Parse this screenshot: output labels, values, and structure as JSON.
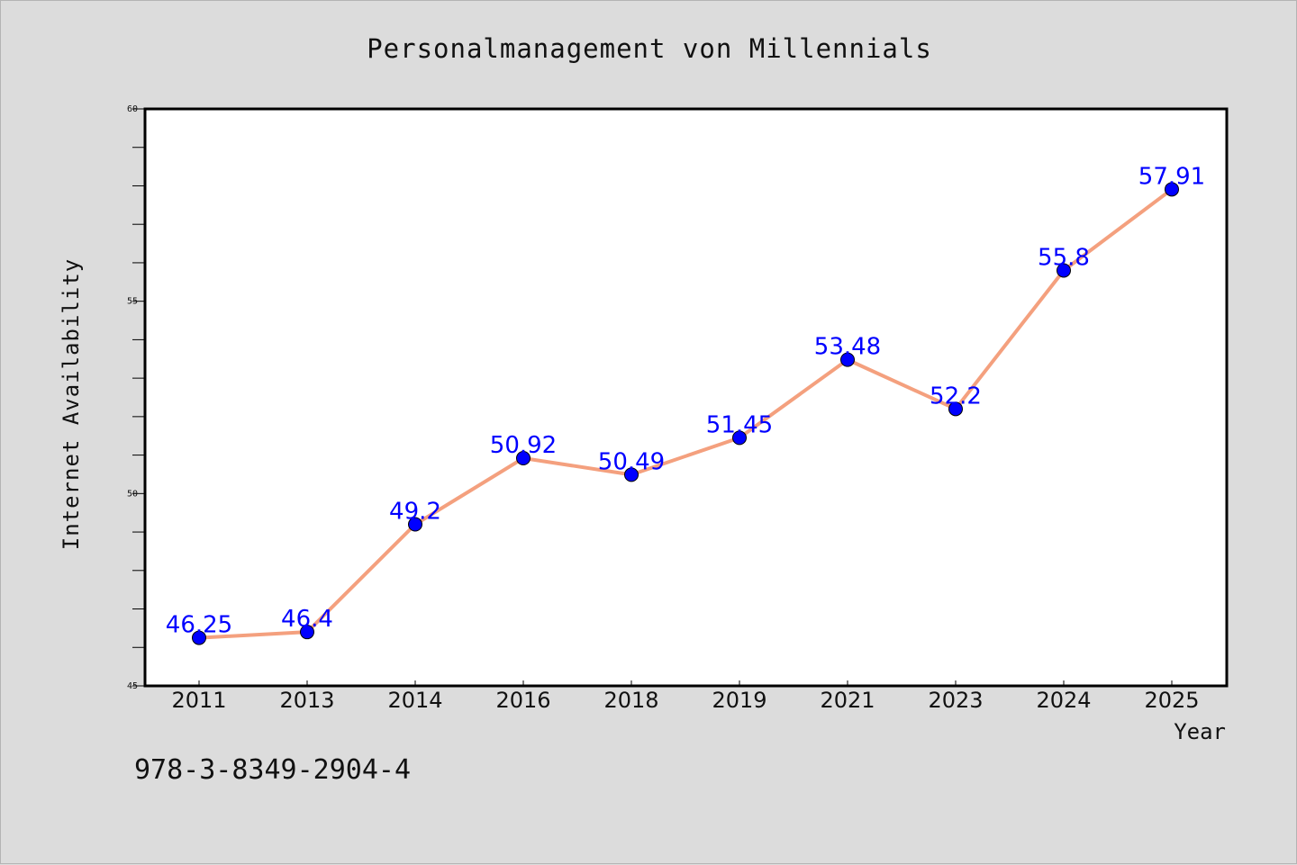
{
  "chart_data": {
    "type": "line",
    "title": "Personalmanagement von Millennials",
    "xlabel": "Year",
    "ylabel": "Internet Availability",
    "categories": [
      "2011",
      "2013",
      "2014",
      "2016",
      "2018",
      "2019",
      "2021",
      "2023",
      "2024",
      "2025"
    ],
    "series": [
      {
        "values": [
          46.25,
          46.4,
          49.2,
          50.92,
          50.49,
          51.45,
          53.48,
          52.2,
          55.8,
          57.91
        ],
        "labels": [
          "46.25",
          "46.4",
          "49.2",
          "50.92",
          "50.49",
          "51.45",
          "53.48",
          "52.2",
          "55.8",
          "57.91"
        ],
        "line_color": "#f4a07e",
        "marker_color": "#0000ff",
        "label_color": "#0000ff"
      }
    ],
    "ylim": [
      45,
      60
    ],
    "yticks": [
      "45",
      "50",
      "55",
      "60"
    ],
    "grid": false,
    "legend": "none"
  },
  "footer": {
    "code": "978-3-8349-2904-4"
  }
}
